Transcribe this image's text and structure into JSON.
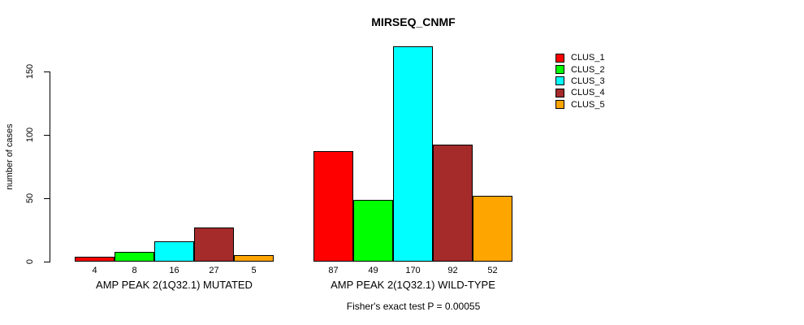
{
  "chart_data": {
    "type": "bar",
    "title": "MIRSEQ_CNMF",
    "ylabel": "number of cases",
    "note": "Fisher's exact test P = 0.00055",
    "categories": [
      "AMP PEAK 2(1Q32.1) MUTATED",
      "AMP PEAK 2(1Q32.1) WILD-TYPE"
    ],
    "series": [
      {
        "name": "CLUS_1",
        "color": "#FF0000",
        "values": [
          4,
          87
        ]
      },
      {
        "name": "CLUS_2",
        "color": "#00FF00",
        "values": [
          8,
          49
        ]
      },
      {
        "name": "CLUS_3",
        "color": "#00FFFF",
        "values": [
          16,
          170
        ]
      },
      {
        "name": "CLUS_4",
        "color": "#A52A2A",
        "values": [
          27,
          92
        ]
      },
      {
        "name": "CLUS_5",
        "color": "#FFA500",
        "values": [
          5,
          52
        ]
      }
    ],
    "yticks": [
      0,
      50,
      100,
      150
    ],
    "ylim": [
      0,
      170
    ],
    "grid": false,
    "legend_position": "top-right",
    "bar_value_labels": true
  }
}
